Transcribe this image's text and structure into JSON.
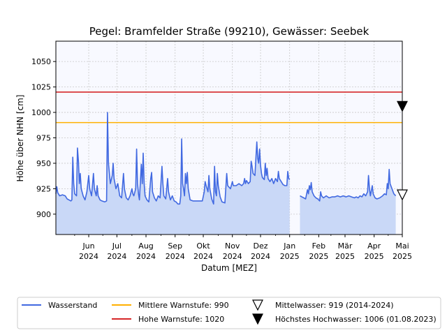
{
  "chart_data": {
    "type": "line",
    "title": "Pegel:  Bramfelder Straße (99210), Gewässer:  Seebek",
    "xlabel": "Datum [MEZ]",
    "ylabel": "Höhe über NHN [cm]",
    "xlim": [
      "2024-04-27",
      "2025-05-01"
    ],
    "ylim": [
      880,
      1070
    ],
    "grid": true,
    "legend_position": "bottom",
    "y_ticks": [
      900,
      925,
      950,
      975,
      1000,
      1025,
      1050
    ],
    "x_ticks": [
      {
        "date": "2024-06-01",
        "line1": "Jun",
        "line2": "2024"
      },
      {
        "date": "2024-07-01",
        "line1": "Jul",
        "line2": "2024"
      },
      {
        "date": "2024-08-01",
        "line1": "Aug",
        "line2": "2024"
      },
      {
        "date": "2024-09-01",
        "line1": "Sep",
        "line2": "2024"
      },
      {
        "date": "2024-10-01",
        "line1": "Okt",
        "line2": "2024"
      },
      {
        "date": "2024-11-01",
        "line1": "Nov",
        "line2": "2024"
      },
      {
        "date": "2024-12-01",
        "line1": "Dez",
        "line2": "2024"
      },
      {
        "date": "2025-01-01",
        "line1": "Jan",
        "line2": "2025"
      },
      {
        "date": "2025-02-01",
        "line1": "Feb",
        "line2": "2025"
      },
      {
        "date": "2025-03-01",
        "line1": "Mär",
        "line2": "2025"
      },
      {
        "date": "2025-04-01",
        "line1": "Apr",
        "line2": "2025"
      },
      {
        "date": "2025-05-01",
        "line1": "Mai",
        "line2": "2025"
      }
    ],
    "reference_lines": [
      {
        "name": "Mittlere Warnstufe: 990",
        "value": 990,
        "color": "#ffb000"
      },
      {
        "name": "Hohe Warnstufe: 1020",
        "value": 1020,
        "color": "#d62728"
      }
    ],
    "markers": [
      {
        "name": "Mittelwasser: 919 (2014-2024)",
        "value": 919,
        "style": "open-triangle-down"
      },
      {
        "name": "Höchstes Hochwasser: 1006 (01.08.2023)",
        "value": 1006,
        "style": "filled-triangle-down"
      }
    ],
    "series": [
      {
        "name": "Wasserstand",
        "color": "#4169e1",
        "fill": "#c9d8f7",
        "segments": [
          [
            [
              "2024-04-27",
              920
            ],
            [
              "2024-04-28",
              927
            ],
            [
              "2024-04-29",
              921
            ],
            [
              "2024-05-01",
              918
            ],
            [
              "2024-05-04",
              919
            ],
            [
              "2024-05-07",
              918
            ],
            [
              "2024-05-09",
              915
            ],
            [
              "2024-05-11",
              914
            ],
            [
              "2024-05-13",
              913
            ],
            [
              "2024-05-14",
              914
            ],
            [
              "2024-05-15",
              956
            ],
            [
              "2024-05-16",
              930
            ],
            [
              "2024-05-17",
              920
            ],
            [
              "2024-05-19",
              918
            ],
            [
              "2024-05-20",
              965
            ],
            [
              "2024-05-21",
              952
            ],
            [
              "2024-05-22",
              930
            ],
            [
              "2024-05-23",
              940
            ],
            [
              "2024-05-24",
              925
            ],
            [
              "2024-05-26",
              918
            ],
            [
              "2024-05-28",
              914
            ],
            [
              "2024-05-30",
              922
            ],
            [
              "2024-06-01",
              938
            ],
            [
              "2024-06-02",
              925
            ],
            [
              "2024-06-04",
              918
            ],
            [
              "2024-06-06",
              940
            ],
            [
              "2024-06-07",
              925
            ],
            [
              "2024-06-09",
              918
            ],
            [
              "2024-06-10",
              928
            ],
            [
              "2024-06-11",
              918
            ],
            [
              "2024-06-13",
              914
            ],
            [
              "2024-06-15",
              913
            ],
            [
              "2024-06-18",
              912
            ],
            [
              "2024-06-20",
              913
            ],
            [
              "2024-06-21",
              1000
            ],
            [
              "2024-06-22",
              950
            ],
            [
              "2024-06-24",
              930
            ],
            [
              "2024-06-26",
              938
            ],
            [
              "2024-06-27",
              950
            ],
            [
              "2024-06-28",
              935
            ],
            [
              "2024-06-30",
              925
            ],
            [
              "2024-07-02",
              930
            ],
            [
              "2024-07-04",
              918
            ],
            [
              "2024-07-06",
              916
            ],
            [
              "2024-07-08",
              940
            ],
            [
              "2024-07-09",
              925
            ],
            [
              "2024-07-11",
              916
            ],
            [
              "2024-07-13",
              914
            ],
            [
              "2024-07-15",
              918
            ],
            [
              "2024-07-17",
              925
            ],
            [
              "2024-07-18",
              920
            ],
            [
              "2024-07-19",
              918
            ],
            [
              "2024-07-21",
              925
            ],
            [
              "2024-07-22",
              964
            ],
            [
              "2024-07-23",
              930
            ],
            [
              "2024-07-24",
              920
            ],
            [
              "2024-07-25",
              914
            ],
            [
              "2024-07-27",
              949
            ],
            [
              "2024-07-28",
              930
            ],
            [
              "2024-07-29",
              960
            ],
            [
              "2024-07-30",
              930
            ],
            [
              "2024-07-31",
              918
            ],
            [
              "2024-08-02",
              914
            ],
            [
              "2024-08-04",
              912
            ],
            [
              "2024-08-06",
              935
            ],
            [
              "2024-08-07",
              941
            ],
            [
              "2024-08-08",
              922
            ],
            [
              "2024-08-10",
              916
            ],
            [
              "2024-08-12",
              913
            ],
            [
              "2024-08-14",
              918
            ],
            [
              "2024-08-16",
              916
            ],
            [
              "2024-08-18",
              947
            ],
            [
              "2024-08-19",
              930
            ],
            [
              "2024-08-20",
              918
            ],
            [
              "2024-08-22",
              915
            ],
            [
              "2024-08-24",
              935
            ],
            [
              "2024-08-25",
              922
            ],
            [
              "2024-08-27",
              914
            ],
            [
              "2024-08-29",
              918
            ],
            [
              "2024-08-31",
              913
            ],
            [
              "2024-09-02",
              912
            ],
            [
              "2024-09-04",
              910
            ],
            [
              "2024-09-06",
              910
            ],
            [
              "2024-09-07",
              918
            ],
            [
              "2024-09-08",
              974
            ],
            [
              "2024-09-09",
              930
            ],
            [
              "2024-09-10",
              925
            ],
            [
              "2024-09-11",
              918
            ],
            [
              "2024-09-12",
              940
            ],
            [
              "2024-09-13",
              930
            ],
            [
              "2024-09-14",
              941
            ],
            [
              "2024-09-15",
              925
            ],
            [
              "2024-09-17",
              914
            ],
            [
              "2024-09-20",
              913
            ],
            [
              "2024-09-25",
              913
            ],
            [
              "2024-09-30",
              913
            ],
            [
              "2024-10-02",
              922
            ],
            [
              "2024-10-03",
              932
            ],
            [
              "2024-10-04",
              928
            ],
            [
              "2024-10-06",
              922
            ],
            [
              "2024-10-07",
              938
            ],
            [
              "2024-10-08",
              925
            ],
            [
              "2024-10-10",
              915
            ],
            [
              "2024-10-12",
              910
            ],
            [
              "2024-10-13",
              947
            ],
            [
              "2024-10-14",
              922
            ],
            [
              "2024-10-15",
              918
            ],
            [
              "2024-10-16",
              940
            ],
            [
              "2024-10-17",
              928
            ],
            [
              "2024-10-19",
              917
            ],
            [
              "2024-10-21",
              912
            ],
            [
              "2024-10-24",
              911
            ],
            [
              "2024-10-26",
              940
            ],
            [
              "2024-10-27",
              928
            ],
            [
              "2024-10-30",
              925
            ],
            [
              "2024-11-01",
              932
            ],
            [
              "2024-11-02",
              928
            ],
            [
              "2024-11-05",
              928
            ],
            [
              "2024-11-08",
              930
            ],
            [
              "2024-11-11",
              928
            ],
            [
              "2024-11-13",
              930
            ],
            [
              "2024-11-14",
              935
            ],
            [
              "2024-11-15",
              930
            ],
            [
              "2024-11-16",
              933
            ],
            [
              "2024-11-18",
              930
            ],
            [
              "2024-11-20",
              932
            ],
            [
              "2024-11-21",
              952
            ],
            [
              "2024-11-22",
              947
            ],
            [
              "2024-11-23",
              940
            ],
            [
              "2024-11-25",
              938
            ],
            [
              "2024-11-27",
              971
            ],
            [
              "2024-11-28",
              955
            ],
            [
              "2024-11-29",
              950
            ],
            [
              "2024-11-30",
              964
            ],
            [
              "2024-12-01",
              948
            ],
            [
              "2024-12-02",
              940
            ],
            [
              "2024-12-03",
              936
            ],
            [
              "2024-12-05",
              934
            ],
            [
              "2024-12-06",
              950
            ],
            [
              "2024-12-07",
              938
            ],
            [
              "2024-12-08",
              945
            ],
            [
              "2024-12-09",
              935
            ],
            [
              "2024-12-11",
              932
            ],
            [
              "2024-12-13",
              935
            ],
            [
              "2024-12-15",
              930
            ],
            [
              "2024-12-17",
              935
            ],
            [
              "2024-12-19",
              932
            ],
            [
              "2024-12-20",
              942
            ],
            [
              "2024-12-21",
              935
            ],
            [
              "2024-12-23",
              932
            ],
            [
              "2024-12-25",
              929
            ],
            [
              "2024-12-27",
              928
            ],
            [
              "2024-12-29",
              928
            ],
            [
              "2024-12-30",
              942
            ],
            [
              "2024-12-31",
              935
            ],
            [
              "2025-01-01",
              934
            ]
          ],
          [
            [
              "2025-01-12",
              918
            ],
            [
              "2025-01-14",
              917
            ],
            [
              "2025-01-16",
              916
            ],
            [
              "2025-01-18",
              915
            ],
            [
              "2025-01-20",
              924
            ],
            [
              "2025-01-21",
              920
            ],
            [
              "2025-01-22",
              928
            ],
            [
              "2025-01-23",
              924
            ],
            [
              "2025-01-24",
              931
            ],
            [
              "2025-01-25",
              922
            ],
            [
              "2025-01-27",
              918
            ],
            [
              "2025-01-29",
              916
            ],
            [
              "2025-01-31",
              915
            ],
            [
              "2025-02-02",
              913
            ],
            [
              "2025-02-03",
              922
            ],
            [
              "2025-02-04",
              918
            ],
            [
              "2025-02-06",
              916
            ],
            [
              "2025-02-09",
              918
            ],
            [
              "2025-02-12",
              916
            ],
            [
              "2025-02-15",
              917
            ],
            [
              "2025-02-18",
              917
            ],
            [
              "2025-02-21",
              918
            ],
            [
              "2025-02-24",
              917
            ],
            [
              "2025-02-27",
              918
            ],
            [
              "2025-03-02",
              917
            ],
            [
              "2025-03-05",
              918
            ],
            [
              "2025-03-08",
              917
            ],
            [
              "2025-03-11",
              916
            ],
            [
              "2025-03-13",
              917
            ],
            [
              "2025-03-15",
              916
            ],
            [
              "2025-03-17",
              918
            ],
            [
              "2025-03-19",
              917
            ],
            [
              "2025-03-21",
              920
            ],
            [
              "2025-03-23",
              918
            ],
            [
              "2025-03-25",
              922
            ],
            [
              "2025-03-26",
              938
            ],
            [
              "2025-03-27",
              925
            ],
            [
              "2025-03-28",
              918
            ],
            [
              "2025-03-30",
              928
            ],
            [
              "2025-03-31",
              920
            ],
            [
              "2025-04-02",
              916
            ],
            [
              "2025-04-04",
              915
            ],
            [
              "2025-04-07",
              916
            ],
            [
              "2025-04-10",
              918
            ],
            [
              "2025-04-12",
              920
            ],
            [
              "2025-04-14",
              919
            ],
            [
              "2025-04-15",
              930
            ],
            [
              "2025-04-16",
              925
            ],
            [
              "2025-04-17",
              944
            ],
            [
              "2025-04-18",
              930
            ],
            [
              "2025-04-20",
              925
            ],
            [
              "2025-04-22",
              920
            ],
            [
              "2025-04-24",
              918
            ]
          ]
        ]
      }
    ]
  }
}
